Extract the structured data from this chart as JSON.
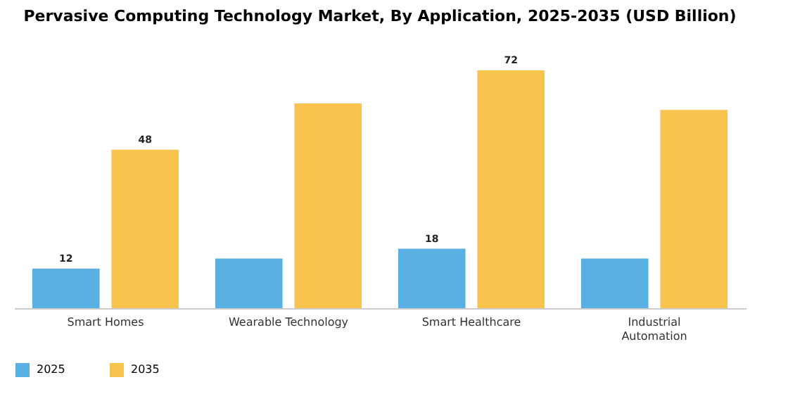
{
  "chart_data": {
    "type": "bar",
    "title": "Pervasive Computing Technology Market, By Application, 2025-2035 (USD Billion)",
    "categories": [
      "Smart Homes",
      "Wearable Technology",
      "Smart Healthcare",
      "Industrial Automation"
    ],
    "series": [
      {
        "name": "2025",
        "color": "#5aafe2",
        "values": [
          12,
          15,
          18,
          15
        ],
        "value_labels": [
          "12",
          null,
          "18",
          null
        ]
      },
      {
        "name": "2035",
        "color": "#f9c44e",
        "values": [
          48,
          62,
          72,
          60
        ],
        "value_labels": [
          "48",
          null,
          "72",
          null
        ]
      }
    ],
    "legend": "bottom",
    "grid": false
  }
}
